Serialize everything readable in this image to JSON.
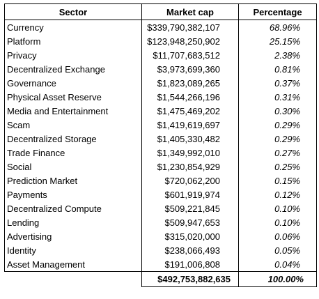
{
  "table": {
    "headers": [
      "Sector",
      "Market cap",
      "Percentage"
    ],
    "rows": [
      {
        "sector": "Currency",
        "market_cap": "$339,790,382,107",
        "percentage": "68.96%"
      },
      {
        "sector": "Platform",
        "market_cap": "$123,948,250,902",
        "percentage": "25.15%"
      },
      {
        "sector": "Privacy",
        "market_cap": "$11,707,683,512",
        "percentage": "2.38%"
      },
      {
        "sector": "Decentralized Exchange",
        "market_cap": "$3,973,699,360",
        "percentage": "0.81%"
      },
      {
        "sector": "Governance",
        "market_cap": "$1,823,089,265",
        "percentage": "0.37%"
      },
      {
        "sector": "Physical Asset Reserve",
        "market_cap": "$1,544,266,196",
        "percentage": "0.31%"
      },
      {
        "sector": "Media and Entertainment",
        "market_cap": "$1,475,469,202",
        "percentage": "0.30%"
      },
      {
        "sector": "Scam",
        "market_cap": "$1,419,619,697",
        "percentage": "0.29%"
      },
      {
        "sector": "Decentralized Storage",
        "market_cap": "$1,405,330,482",
        "percentage": "0.29%"
      },
      {
        "sector": "Trade Finance",
        "market_cap": "$1,349,992,010",
        "percentage": "0.27%"
      },
      {
        "sector": "Social",
        "market_cap": "$1,230,854,929",
        "percentage": "0.25%"
      },
      {
        "sector": "Prediction Market",
        "market_cap": "$720,062,200",
        "percentage": "0.15%"
      },
      {
        "sector": "Payments",
        "market_cap": "$601,919,974",
        "percentage": "0.12%"
      },
      {
        "sector": "Decentralized Compute",
        "market_cap": "$509,221,845",
        "percentage": "0.10%"
      },
      {
        "sector": "Lending",
        "market_cap": "$509,947,653",
        "percentage": "0.10%"
      },
      {
        "sector": "Advertising",
        "market_cap": "$315,020,000",
        "percentage": "0.06%"
      },
      {
        "sector": "Identity",
        "market_cap": "$238,066,493",
        "percentage": "0.05%"
      },
      {
        "sector": "Asset Management",
        "market_cap": "$191,006,808",
        "percentage": "0.04%"
      }
    ],
    "total": {
      "market_cap": "$492,753,882,635",
      "percentage": "100.00%"
    }
  }
}
